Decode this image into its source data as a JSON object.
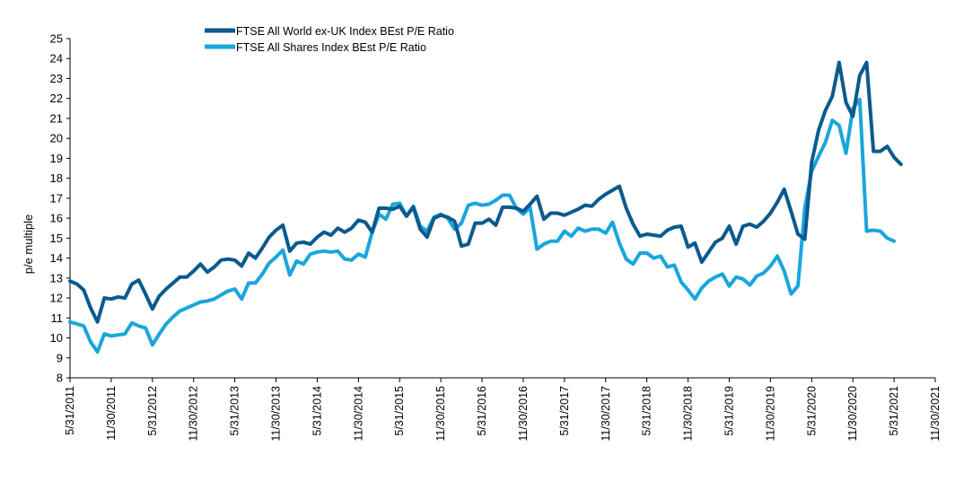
{
  "chart_data": {
    "type": "line",
    "title": "",
    "xlabel": "",
    "ylabel": "p/e multiple",
    "ylim": [
      8,
      25
    ],
    "yticks": [
      8,
      9,
      10,
      11,
      12,
      13,
      14,
      15,
      16,
      17,
      18,
      19,
      20,
      21,
      22,
      23,
      24,
      25
    ],
    "grid": false,
    "legend_position": "top-left",
    "x_months_range": [
      0,
      126
    ],
    "xticks": [
      {
        "label": "5/31/2011",
        "month": 0
      },
      {
        "label": "11/30/2011",
        "month": 6
      },
      {
        "label": "5/31/2012",
        "month": 12
      },
      {
        "label": "11/30/2012",
        "month": 18
      },
      {
        "label": "5/31/2013",
        "month": 24
      },
      {
        "label": "11/30/2013",
        "month": 30
      },
      {
        "label": "5/31/2014",
        "month": 36
      },
      {
        "label": "11/30/2014",
        "month": 42
      },
      {
        "label": "5/31/2015",
        "month": 48
      },
      {
        "label": "11/30/2015",
        "month": 54
      },
      {
        "label": "5/31/2016",
        "month": 60
      },
      {
        "label": "11/30/2016",
        "month": 66
      },
      {
        "label": "5/31/2017",
        "month": 72
      },
      {
        "label": "11/30/2017",
        "month": 78
      },
      {
        "label": "5/31/2018",
        "month": 84
      },
      {
        "label": "11/30/2018",
        "month": 90
      },
      {
        "label": "5/31/2019",
        "month": 96
      },
      {
        "label": "11/30/2019",
        "month": 102
      },
      {
        "label": "5/31/2020",
        "month": 108
      },
      {
        "label": "11/30/2020",
        "month": 114
      },
      {
        "label": "5/31/2021",
        "month": 120
      },
      {
        "label": "11/30/2021",
        "month": 126
      }
    ],
    "series": [
      {
        "name": "FTSE All World ex-UK Index BEst P/E Ratio",
        "color": "#0b5a8e",
        "values": [
          12.85,
          12.7,
          12.4,
          11.5,
          10.8,
          12.0,
          11.95,
          12.05,
          12.0,
          12.7,
          12.9,
          12.2,
          11.45,
          12.1,
          12.45,
          12.75,
          13.05,
          13.05,
          13.35,
          13.7,
          13.3,
          13.55,
          13.9,
          13.95,
          13.9,
          13.6,
          14.25,
          14.0,
          14.5,
          15.05,
          15.4,
          15.65,
          14.35,
          14.75,
          14.8,
          14.7,
          15.05,
          15.3,
          15.15,
          15.5,
          15.3,
          15.5,
          15.9,
          15.8,
          15.3,
          16.5,
          16.5,
          16.45,
          16.6,
          16.1,
          16.55,
          15.45,
          15.05,
          16.0,
          16.15,
          16.05,
          15.85,
          14.6,
          14.7,
          15.75,
          15.75,
          15.95,
          15.65,
          16.55,
          16.55,
          16.5,
          16.35,
          16.7,
          17.1,
          15.95,
          16.25,
          16.25,
          16.15,
          16.3,
          16.45,
          16.65,
          16.6,
          16.95,
          17.2,
          17.4,
          17.6,
          16.5,
          15.7,
          15.1,
          15.2,
          15.15,
          15.1,
          15.4,
          15.55,
          15.6,
          14.55,
          14.75,
          13.8,
          14.3,
          14.8,
          15.0,
          15.6,
          14.7,
          15.6,
          15.7,
          15.55,
          15.85,
          16.25,
          16.8,
          17.45,
          16.35,
          15.2,
          14.95,
          18.8,
          20.4,
          21.4,
          22.1,
          23.8,
          21.8,
          21.1,
          23.15,
          23.8,
          19.35,
          19.35,
          19.6,
          19.05,
          18.7
        ]
      },
      {
        "name": "FTSE All Shares Index BEst P/E Ratio",
        "color": "#19a6dc",
        "values": [
          10.8,
          10.7,
          10.6,
          9.8,
          9.3,
          10.2,
          10.1,
          10.15,
          10.2,
          10.75,
          10.6,
          10.5,
          9.65,
          10.2,
          10.7,
          11.05,
          11.35,
          11.5,
          11.65,
          11.8,
          11.85,
          11.95,
          12.15,
          12.35,
          12.45,
          11.95,
          12.75,
          12.75,
          13.2,
          13.75,
          14.05,
          14.4,
          13.15,
          13.85,
          13.7,
          14.2,
          14.3,
          14.35,
          14.3,
          14.35,
          13.95,
          13.9,
          14.2,
          14.05,
          15.3,
          16.2,
          15.95,
          16.7,
          16.75,
          16.1,
          16.6,
          15.6,
          15.35,
          16.05,
          16.2,
          16.0,
          15.45,
          15.75,
          16.65,
          16.75,
          16.65,
          16.7,
          16.9,
          17.15,
          17.15,
          16.5,
          16.2,
          16.55,
          14.45,
          14.7,
          14.85,
          14.85,
          15.35,
          15.1,
          15.5,
          15.35,
          15.45,
          15.45,
          15.25,
          15.8,
          14.75,
          13.95,
          13.7,
          14.25,
          14.25,
          14.0,
          14.1,
          13.55,
          13.65,
          12.8,
          12.4,
          11.95,
          12.5,
          12.85,
          13.05,
          13.2,
          12.6,
          13.05,
          12.95,
          12.65,
          13.1,
          13.25,
          13.6,
          14.1,
          13.35,
          12.2,
          12.6,
          16.5,
          18.35,
          19.1,
          19.8,
          20.9,
          20.65,
          19.25,
          21.5,
          21.95,
          15.35,
          15.4,
          15.35,
          15.0,
          14.85
        ]
      }
    ]
  }
}
